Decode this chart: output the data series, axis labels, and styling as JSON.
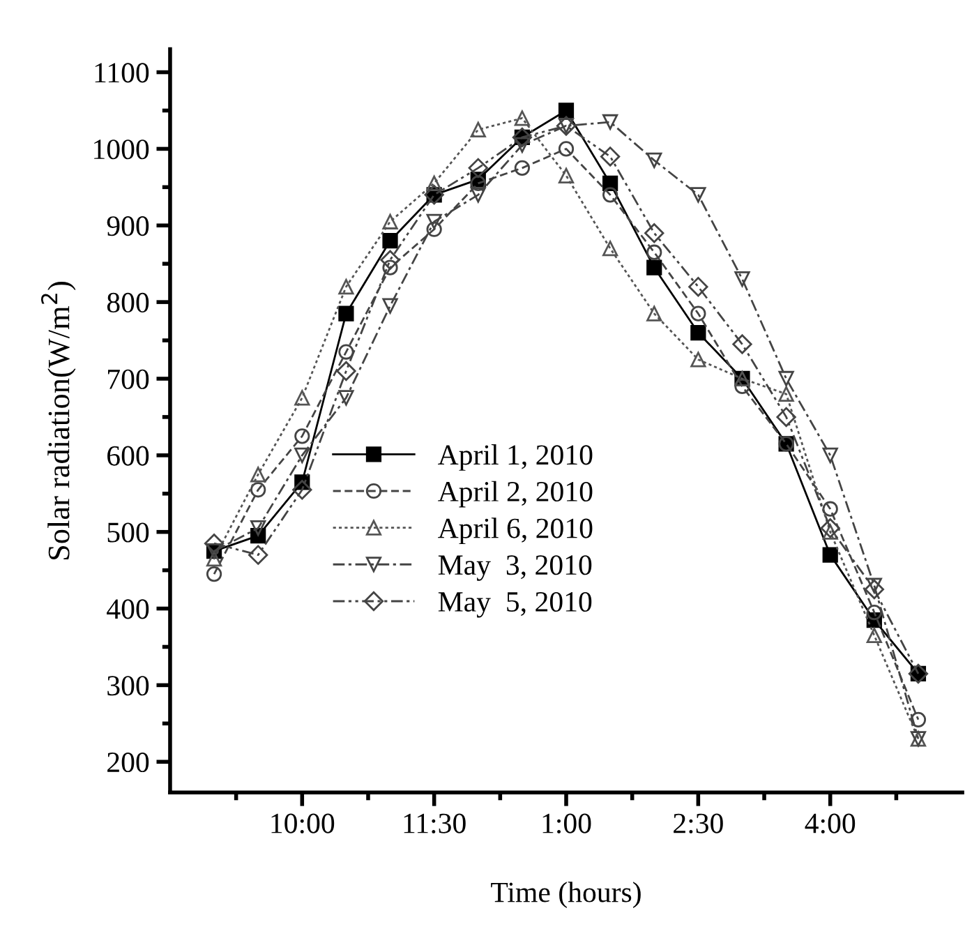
{
  "chart_data": {
    "type": "line",
    "xlabel": "Time (hours)",
    "ylabel": "Solar radiation(W/m$^{2}$)",
    "categories": [
      null,
      null,
      "10:00",
      null,
      null,
      "11:30",
      null,
      null,
      "1:00",
      null,
      null,
      "2:30",
      null,
      null,
      "4:00",
      null,
      null
    ],
    "ylim": [
      160,
      1130
    ],
    "yticks": [
      200,
      {
        "value": 250,
        "label": null
      },
      300,
      {
        "value": 350,
        "label": null
      },
      400,
      {
        "value": 450,
        "label": null
      },
      500,
      {
        "value": 550,
        "label": null
      },
      600,
      {
        "value": 650,
        "label": null
      },
      700,
      {
        "value": 750,
        "label": null
      },
      800,
      {
        "value": 850,
        "label": null
      },
      900,
      {
        "value": 950,
        "label": null
      },
      1000,
      {
        "value": 1050,
        "label": null
      },
      1100
    ],
    "legend": "bottom",
    "series": [
      {
        "name": "April 1, 2010",
        "color": "#000000",
        "marker": "square",
        "line_style": "solid",
        "values": [
          475,
          495,
          565,
          785,
          880,
          940,
          960,
          1015,
          1050,
          955,
          845,
          760,
          700,
          615,
          470,
          385,
          315
        ]
      },
      {
        "name": "April 2, 2010",
        "color": "#444444",
        "marker": "circle",
        "line_style": "dashed",
        "values": [
          445,
          555,
          625,
          735,
          845,
          895,
          955,
          975,
          1000,
          940,
          865,
          785,
          690,
          615,
          530,
          395,
          255
        ]
      },
      {
        "name": "April 6, 2010",
        "color": "#555555",
        "marker": "triangle",
        "line_style": "dotted",
        "values": [
          465,
          575,
          675,
          820,
          905,
          955,
          1025,
          1040,
          965,
          870,
          785,
          725,
          700,
          680,
          500,
          365,
          230
        ]
      },
      {
        "name": "May  3, 2010",
        "color": "#444444",
        "marker": "triangle_down",
        "line_style": "dashdot",
        "values": [
          475,
          505,
          600,
          675,
          795,
          905,
          940,
          1005,
          1030,
          1035,
          985,
          940,
          830,
          700,
          600,
          430,
          230
        ]
      },
      {
        "name": "May  5, 2010",
        "color": "#444444",
        "marker": "diamond",
        "line_style": "dashdotdot",
        "values": [
          485,
          470,
          555,
          710,
          855,
          940,
          975,
          1015,
          1030,
          990,
          890,
          820,
          745,
          650,
          505,
          425,
          315
        ]
      }
    ]
  }
}
